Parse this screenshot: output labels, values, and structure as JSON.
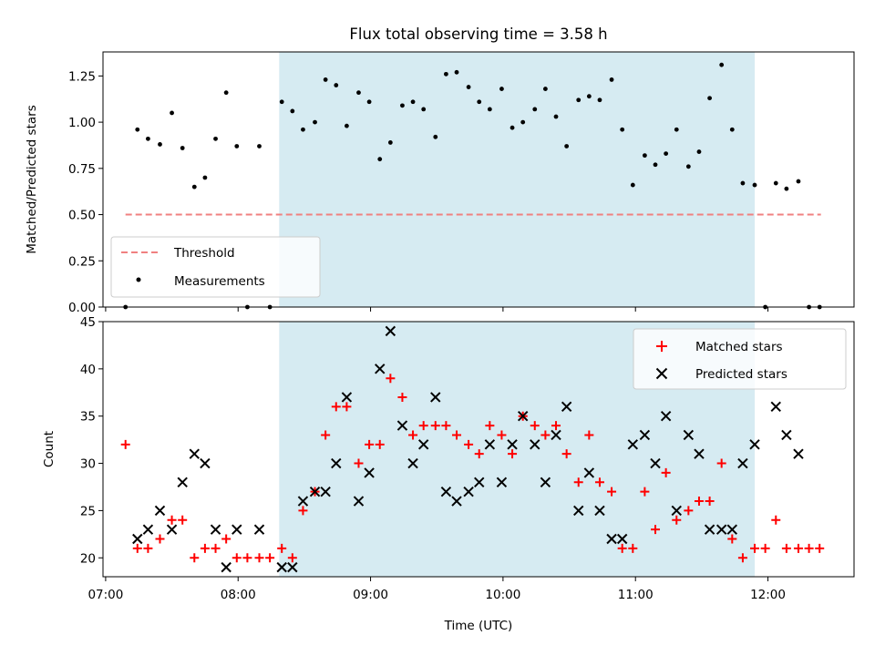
{
  "chart_data": [
    {
      "type": "scatter",
      "title": "Flux total observing time = 3.58 h",
      "ylabel": "Matched/Predicted stars",
      "xlim": [
        6.98,
        12.65
      ],
      "ylim": [
        0,
        1.38
      ],
      "yticks": [
        0,
        0.25,
        0.5,
        0.75,
        1.0,
        1.25
      ],
      "ytick_labels": [
        "0.00",
        "0.25",
        "0.50",
        "0.75",
        "1.00",
        "1.25"
      ],
      "xtick_values": [
        7,
        8,
        9,
        10,
        11,
        12
      ],
      "shaded_span": [
        8.31,
        11.9
      ],
      "shaded_color": "#add8e6",
      "threshold": {
        "name": "Threshold",
        "value": 0.5,
        "x": [
          7.15,
          12.4
        ],
        "color": "#f08080"
      },
      "legend_location": "lower-left",
      "series": [
        {
          "name": "Measurements",
          "color": "#000000",
          "marker": "dot",
          "points": [
            [
              7.15,
              0.0
            ],
            [
              7.24,
              0.96
            ],
            [
              7.32,
              0.91
            ],
            [
              7.41,
              0.88
            ],
            [
              7.5,
              1.05
            ],
            [
              7.58,
              0.86
            ],
            [
              7.67,
              0.65
            ],
            [
              7.75,
              0.7
            ],
            [
              7.83,
              0.91
            ],
            [
              7.91,
              1.16
            ],
            [
              7.99,
              0.87
            ],
            [
              8.07,
              0.0
            ],
            [
              8.16,
              0.87
            ],
            [
              8.24,
              0.0
            ],
            [
              8.33,
              1.11
            ],
            [
              8.41,
              1.06
            ],
            [
              8.49,
              0.96
            ],
            [
              8.58,
              1.0
            ],
            [
              8.66,
              1.23
            ],
            [
              8.74,
              1.2
            ],
            [
              8.82,
              0.98
            ],
            [
              8.91,
              1.16
            ],
            [
              8.99,
              1.11
            ],
            [
              9.07,
              0.8
            ],
            [
              9.15,
              0.89
            ],
            [
              9.24,
              1.09
            ],
            [
              9.32,
              1.11
            ],
            [
              9.4,
              1.07
            ],
            [
              9.49,
              0.92
            ],
            [
              9.57,
              1.26
            ],
            [
              9.65,
              1.27
            ],
            [
              9.74,
              1.19
            ],
            [
              9.82,
              1.11
            ],
            [
              9.9,
              1.07
            ],
            [
              9.99,
              1.18
            ],
            [
              10.07,
              0.97
            ],
            [
              10.15,
              1.0
            ],
            [
              10.24,
              1.07
            ],
            [
              10.32,
              1.18
            ],
            [
              10.4,
              1.03
            ],
            [
              10.48,
              0.87
            ],
            [
              10.57,
              1.12
            ],
            [
              10.65,
              1.14
            ],
            [
              10.73,
              1.12
            ],
            [
              10.82,
              1.23
            ],
            [
              10.9,
              0.96
            ],
            [
              10.98,
              0.66
            ],
            [
              11.07,
              0.82
            ],
            [
              11.15,
              0.77
            ],
            [
              11.23,
              0.83
            ],
            [
              11.31,
              0.96
            ],
            [
              11.4,
              0.76
            ],
            [
              11.48,
              0.84
            ],
            [
              11.56,
              1.13
            ],
            [
              11.65,
              1.31
            ],
            [
              11.73,
              0.96
            ],
            [
              11.81,
              0.67
            ],
            [
              11.9,
              0.66
            ],
            [
              11.98,
              0.0
            ],
            [
              12.06,
              0.67
            ],
            [
              12.14,
              0.64
            ],
            [
              12.23,
              0.68
            ],
            [
              12.31,
              0.0
            ],
            [
              12.39,
              0.0
            ]
          ]
        }
      ]
    },
    {
      "type": "scatter",
      "xlabel": "Time (UTC)",
      "ylabel": "Count",
      "xlim": [
        6.98,
        12.65
      ],
      "ylim": [
        18,
        45
      ],
      "yticks": [
        20,
        25,
        30,
        35,
        40,
        45
      ],
      "ytick_labels": [
        "20",
        "25",
        "30",
        "35",
        "40",
        "45"
      ],
      "xtick_values": [
        7,
        8,
        9,
        10,
        11,
        12
      ],
      "xtick_labels": [
        "07:00",
        "08:00",
        "09:00",
        "10:00",
        "11:00",
        "12:00"
      ],
      "shaded_span": [
        8.31,
        11.9
      ],
      "shaded_color": "#add8e6",
      "legend_location": "upper-right",
      "series": [
        {
          "name": "Matched stars",
          "color": "#ff0000",
          "marker": "plus",
          "points": [
            [
              7.15,
              32
            ],
            [
              7.24,
              21
            ],
            [
              7.32,
              21
            ],
            [
              7.41,
              22
            ],
            [
              7.5,
              24
            ],
            [
              7.58,
              24
            ],
            [
              7.67,
              20
            ],
            [
              7.75,
              21
            ],
            [
              7.83,
              21
            ],
            [
              7.91,
              22
            ],
            [
              7.99,
              20
            ],
            [
              8.07,
              20
            ],
            [
              8.16,
              20
            ],
            [
              8.24,
              20
            ],
            [
              8.33,
              21
            ],
            [
              8.41,
              20
            ],
            [
              8.49,
              25
            ],
            [
              8.58,
              27
            ],
            [
              8.66,
              33
            ],
            [
              8.74,
              36
            ],
            [
              8.82,
              36
            ],
            [
              8.91,
              30
            ],
            [
              8.99,
              32
            ],
            [
              9.07,
              32
            ],
            [
              9.15,
              39
            ],
            [
              9.24,
              37
            ],
            [
              9.32,
              33
            ],
            [
              9.4,
              34
            ],
            [
              9.49,
              34
            ],
            [
              9.57,
              34
            ],
            [
              9.65,
              33
            ],
            [
              9.74,
              32
            ],
            [
              9.82,
              31
            ],
            [
              9.9,
              34
            ],
            [
              9.99,
              33
            ],
            [
              10.07,
              31
            ],
            [
              10.15,
              35
            ],
            [
              10.24,
              34
            ],
            [
              10.32,
              33
            ],
            [
              10.4,
              34
            ],
            [
              10.48,
              31
            ],
            [
              10.57,
              28
            ],
            [
              10.65,
              33
            ],
            [
              10.73,
              28
            ],
            [
              10.82,
              27
            ],
            [
              10.9,
              21
            ],
            [
              10.98,
              21
            ],
            [
              11.07,
              27
            ],
            [
              11.15,
              23
            ],
            [
              11.23,
              29
            ],
            [
              11.31,
              24
            ],
            [
              11.4,
              25
            ],
            [
              11.48,
              26
            ],
            [
              11.56,
              26
            ],
            [
              11.65,
              30
            ],
            [
              11.73,
              22
            ],
            [
              11.81,
              20
            ],
            [
              11.9,
              21
            ],
            [
              11.98,
              21
            ],
            [
              12.06,
              24
            ],
            [
              12.14,
              21
            ],
            [
              12.23,
              21
            ],
            [
              12.31,
              21
            ],
            [
              12.39,
              21
            ]
          ]
        },
        {
          "name": "Predicted stars",
          "color": "#000000",
          "marker": "x",
          "points": [
            [
              7.24,
              22
            ],
            [
              7.32,
              23
            ],
            [
              7.41,
              25
            ],
            [
              7.5,
              23
            ],
            [
              7.58,
              28
            ],
            [
              7.67,
              31
            ],
            [
              7.75,
              30
            ],
            [
              7.83,
              23
            ],
            [
              7.91,
              19
            ],
            [
              7.99,
              23
            ],
            [
              8.16,
              23
            ],
            [
              8.33,
              19
            ],
            [
              8.41,
              19
            ],
            [
              8.49,
              26
            ],
            [
              8.58,
              27
            ],
            [
              8.66,
              27
            ],
            [
              8.74,
              30
            ],
            [
              8.82,
              37
            ],
            [
              8.91,
              26
            ],
            [
              8.99,
              29
            ],
            [
              9.07,
              40
            ],
            [
              9.15,
              44
            ],
            [
              9.24,
              34
            ],
            [
              9.32,
              30
            ],
            [
              9.4,
              32
            ],
            [
              9.49,
              37
            ],
            [
              9.57,
              27
            ],
            [
              9.65,
              26
            ],
            [
              9.74,
              27
            ],
            [
              9.82,
              28
            ],
            [
              9.9,
              32
            ],
            [
              9.99,
              28
            ],
            [
              10.07,
              32
            ],
            [
              10.15,
              35
            ],
            [
              10.24,
              32
            ],
            [
              10.32,
              28
            ],
            [
              10.4,
              33
            ],
            [
              10.48,
              36
            ],
            [
              10.57,
              25
            ],
            [
              10.65,
              29
            ],
            [
              10.73,
              25
            ],
            [
              10.82,
              22
            ],
            [
              10.9,
              22
            ],
            [
              10.98,
              32
            ],
            [
              11.07,
              33
            ],
            [
              11.15,
              30
            ],
            [
              11.23,
              35
            ],
            [
              11.31,
              25
            ],
            [
              11.4,
              33
            ],
            [
              11.48,
              31
            ],
            [
              11.56,
              23
            ],
            [
              11.65,
              23
            ],
            [
              11.73,
              23
            ],
            [
              11.81,
              30
            ],
            [
              11.9,
              32
            ],
            [
              12.06,
              36
            ],
            [
              12.14,
              33
            ],
            [
              12.23,
              31
            ]
          ]
        }
      ]
    }
  ]
}
